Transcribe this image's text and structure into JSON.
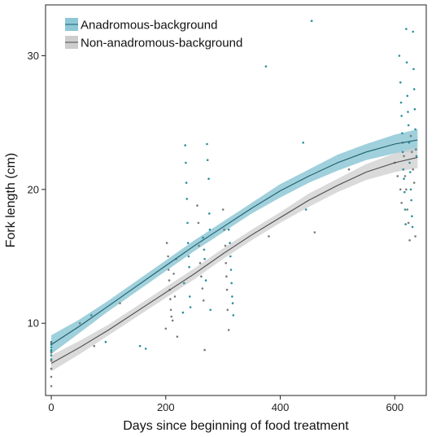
{
  "chart_data": {
    "type": "scatter",
    "title": "",
    "xlabel": "Days since beginning of food treatment",
    "ylabel": "Fork length (cm)",
    "xlim": [
      -10,
      655
    ],
    "ylim": [
      4.6,
      33.8
    ],
    "x_ticks": [
      0,
      200,
      400,
      600
    ],
    "x_tick_labels": [
      "0",
      "200",
      "400",
      "600"
    ],
    "y_ticks": [
      10,
      20,
      30
    ],
    "y_tick_labels": [
      "10",
      "20",
      "30"
    ],
    "grid": false,
    "legend_position": "top-left",
    "series": [
      {
        "name": "Anadromous-background",
        "color": "#2b8f9e",
        "band_color": "#8ec8d6",
        "fit": {
          "x": [
            0,
            50,
            100,
            150,
            200,
            250,
            300,
            350,
            400,
            450,
            500,
            550,
            600,
            640
          ],
          "y": [
            8.4,
            9.8,
            11.3,
            12.8,
            14.3,
            15.8,
            17.2,
            18.6,
            19.9,
            21.0,
            22.0,
            22.8,
            23.4,
            23.7
          ],
          "lower": [
            7.7,
            9.3,
            10.9,
            12.4,
            13.9,
            15.4,
            16.8,
            18.2,
            19.4,
            20.5,
            21.4,
            22.2,
            22.7,
            22.9
          ],
          "upper": [
            9.1,
            10.3,
            11.7,
            13.2,
            14.7,
            16.2,
            17.6,
            19.0,
            20.4,
            21.5,
            22.6,
            23.4,
            24.1,
            24.5
          ]
        },
        "points": {
          "x": [
            0,
            0,
            0,
            0,
            0,
            0,
            0,
            70,
            95,
            155,
            165,
            230,
            232,
            234,
            235,
            236,
            237,
            238,
            239,
            240,
            241,
            242,
            243,
            265,
            267,
            268,
            270,
            272,
            273,
            275,
            276,
            277,
            278,
            310,
            312,
            313,
            314,
            315,
            316,
            317,
            318,
            375,
            440,
            445,
            455,
            608,
            610,
            611,
            612,
            613,
            614,
            615,
            616,
            617,
            618,
            619,
            620,
            621,
            622,
            623,
            624,
            625,
            626,
            627,
            628,
            629,
            630,
            631,
            632,
            633,
            634,
            635,
            636,
            637,
            638
          ],
          "y": [
            7.6,
            7.9,
            8.2,
            8.4,
            8.6,
            8.0,
            7.3,
            10.6,
            8.6,
            8.3,
            8.1,
            10.8,
            13.0,
            23.3,
            22.0,
            20.5,
            19.3,
            17.5,
            16.0,
            15.0,
            14.2,
            12.0,
            11.2,
            16.4,
            15.5,
            14.8,
            13.2,
            23.4,
            22.2,
            20.8,
            18.2,
            17.0,
            11.0,
            17.0,
            16.0,
            15.0,
            14.0,
            13.0,
            12.0,
            11.5,
            10.6,
            29.2,
            23.5,
            18.5,
            32.6,
            30.0,
            28.0,
            26.5,
            25.5,
            24.2,
            22.8,
            21.5,
            20.8,
            19.8,
            18.5,
            17.4,
            32.0,
            29.5,
            27.0,
            25.8,
            24.8,
            23.5,
            22.0,
            21.3,
            20.0,
            19.2,
            18.0,
            17.2,
            31.8,
            29.0,
            27.5,
            26.0,
            24.5,
            23.0,
            22.5
          ]
        }
      },
      {
        "name": "Non-anadromous-background",
        "color": "#7a7a7a",
        "band_color": "#cdcdcd",
        "fit": {
          "x": [
            0,
            50,
            100,
            150,
            200,
            250,
            300,
            350,
            400,
            450,
            500,
            550,
            600,
            640
          ],
          "y": [
            7.0,
            8.2,
            9.5,
            10.9,
            12.3,
            13.7,
            15.2,
            16.6,
            17.9,
            19.2,
            20.3,
            21.3,
            22.0,
            22.4
          ],
          "lower": [
            6.4,
            7.7,
            9.1,
            10.5,
            11.9,
            13.3,
            14.8,
            16.2,
            17.5,
            18.7,
            19.8,
            20.7,
            21.3,
            21.6
          ],
          "upper": [
            7.6,
            8.7,
            9.9,
            11.3,
            12.7,
            14.1,
            15.6,
            17.0,
            18.3,
            19.7,
            20.8,
            21.9,
            22.7,
            23.2
          ]
        },
        "points": {
          "x": [
            0,
            0,
            0,
            0,
            0,
            0,
            50,
            75,
            120,
            200,
            202,
            204,
            205,
            206,
            207,
            208,
            209,
            210,
            212,
            214,
            216,
            218,
            220,
            255,
            257,
            258,
            260,
            262,
            264,
            266,
            268,
            300,
            302,
            304,
            305,
            306,
            307,
            308,
            310,
            380,
            460,
            520,
            600,
            605,
            610,
            612,
            614,
            616,
            618,
            620,
            622,
            624,
            626,
            628,
            630,
            632,
            634,
            636
          ],
          "y": [
            5.3,
            6.0,
            6.6,
            7.2,
            7.8,
            8.5,
            10.0,
            8.3,
            11.5,
            9.6,
            16.0,
            15.0,
            14.0,
            13.2,
            12.5,
            11.8,
            11.0,
            10.5,
            10.2,
            13.7,
            12.0,
            14.8,
            9.0,
            18.8,
            17.5,
            15.8,
            14.5,
            13.5,
            12.6,
            11.7,
            8.0,
            18.5,
            17.0,
            15.8,
            14.5,
            13.5,
            12.5,
            11.0,
            9.5,
            16.5,
            16.8,
            21.5,
            22.0,
            21.0,
            20.0,
            19.0,
            23.5,
            22.5,
            21.0,
            20.0,
            18.5,
            17.5,
            16.2,
            24.0,
            22.8,
            21.5,
            20.5,
            16.5
          ]
        }
      }
    ]
  }
}
